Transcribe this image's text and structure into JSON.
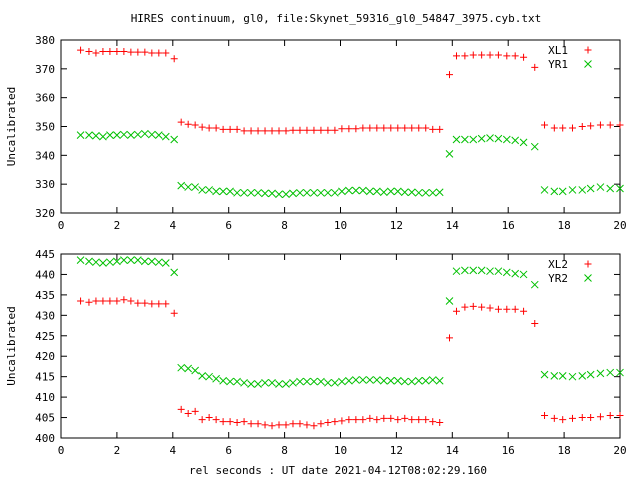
{
  "title": "HIRES continuum, gl0, file:Skynet_59316_gl0_54847_3975.cyb.txt",
  "xlabel": "rel seconds : UT date 2021-04-12T08:02:29.160",
  "colors": {
    "red": "#ff0000",
    "green": "#00c000",
    "axis": "#000000"
  },
  "chart_data": [
    {
      "type": "scatter",
      "ylabel": "Uncalibrated",
      "xlim": [
        0,
        20
      ],
      "ylim": [
        320,
        380
      ],
      "xticks": [
        0,
        2,
        4,
        6,
        8,
        10,
        12,
        14,
        16,
        18,
        20
      ],
      "yticks": [
        320,
        330,
        340,
        350,
        360,
        370,
        380
      ],
      "legend": "top-right",
      "series": [
        {
          "name": "XL1",
          "marker": "plus",
          "color": "#ff0000",
          "x": [
            0.7,
            1.0,
            1.25,
            1.5,
            1.75,
            2.0,
            2.25,
            2.5,
            2.75,
            3.0,
            3.25,
            3.5,
            3.75,
            4.05,
            4.3,
            4.55,
            4.8,
            5.05,
            5.3,
            5.55,
            5.8,
            6.05,
            6.3,
            6.55,
            6.8,
            7.05,
            7.3,
            7.55,
            7.8,
            8.05,
            8.3,
            8.55,
            8.8,
            9.05,
            9.3,
            9.55,
            9.8,
            10.05,
            10.3,
            10.55,
            10.8,
            11.05,
            11.3,
            11.55,
            11.8,
            12.05,
            12.3,
            12.55,
            12.8,
            13.05,
            13.3,
            13.55,
            13.9,
            14.15,
            14.45,
            14.75,
            15.05,
            15.35,
            15.65,
            15.95,
            16.25,
            16.55,
            16.95,
            17.3,
            17.65,
            17.95,
            18.3,
            18.65,
            18.95,
            19.3,
            19.65,
            20.0
          ],
          "y": [
            376.5,
            376,
            375.5,
            376,
            376,
            376,
            376,
            375.8,
            375.8,
            375.8,
            375.5,
            375.5,
            375.5,
            373.5,
            351.5,
            350.8,
            350.5,
            349.8,
            349.5,
            349.5,
            349.0,
            349.0,
            349.0,
            348.5,
            348.5,
            348.5,
            348.5,
            348.5,
            348.5,
            348.5,
            348.7,
            348.7,
            348.7,
            348.7,
            348.7,
            348.7,
            348.7,
            349.2,
            349.2,
            349.2,
            349.5,
            349.5,
            349.5,
            349.5,
            349.5,
            349.5,
            349.5,
            349.5,
            349.5,
            349.5,
            349.0,
            349.0,
            368.0,
            374.5,
            374.5,
            374.8,
            374.8,
            374.8,
            374.8,
            374.5,
            374.5,
            374.0,
            370.5,
            350.5,
            349.5,
            349.5,
            349.5,
            350.0,
            350.2,
            350.5,
            350.5,
            350.5
          ]
        },
        {
          "name": "YR1",
          "marker": "cross",
          "color": "#00c000",
          "x": [
            0.7,
            1.0,
            1.25,
            1.5,
            1.75,
            2.0,
            2.25,
            2.5,
            2.75,
            3.0,
            3.25,
            3.5,
            3.75,
            4.05,
            4.3,
            4.55,
            4.8,
            5.05,
            5.3,
            5.55,
            5.8,
            6.05,
            6.3,
            6.55,
            6.8,
            7.05,
            7.3,
            7.55,
            7.8,
            8.05,
            8.3,
            8.55,
            8.8,
            9.05,
            9.3,
            9.55,
            9.8,
            10.05,
            10.3,
            10.55,
            10.8,
            11.05,
            11.3,
            11.55,
            11.8,
            12.05,
            12.3,
            12.55,
            12.8,
            13.05,
            13.3,
            13.55,
            13.9,
            14.15,
            14.45,
            14.75,
            15.05,
            15.35,
            15.65,
            15.95,
            16.25,
            16.55,
            16.95,
            17.3,
            17.65,
            17.95,
            18.3,
            18.65,
            18.95,
            19.3,
            19.65,
            20.0
          ],
          "y": [
            347.0,
            347.0,
            346.8,
            346.5,
            347.0,
            347.0,
            347.2,
            347.0,
            347.2,
            347.5,
            347.2,
            347.0,
            346.5,
            345.5,
            329.5,
            329.0,
            329.0,
            328.0,
            328.0,
            327.5,
            327.5,
            327.5,
            327.0,
            327.0,
            327.0,
            327.0,
            326.8,
            326.8,
            326.5,
            326.5,
            326.8,
            327.0,
            327.0,
            327.0,
            327.0,
            327.0,
            327.0,
            327.5,
            327.8,
            327.8,
            327.8,
            327.5,
            327.5,
            327.2,
            327.5,
            327.5,
            327.2,
            327.2,
            327.0,
            327.0,
            327.0,
            327.2,
            340.5,
            345.5,
            345.5,
            345.5,
            345.8,
            346.0,
            345.8,
            345.5,
            345.2,
            344.5,
            343.0,
            328.0,
            327.5,
            327.5,
            328.0,
            328.0,
            328.5,
            329.0,
            328.5,
            328.5
          ]
        }
      ]
    },
    {
      "type": "scatter",
      "ylabel": "Uncalibrated",
      "xlim": [
        0,
        20
      ],
      "ylim": [
        400,
        445
      ],
      "xticks": [
        0,
        2,
        4,
        6,
        8,
        10,
        12,
        14,
        16,
        18,
        20
      ],
      "yticks": [
        400,
        405,
        410,
        415,
        420,
        425,
        430,
        435,
        440,
        445
      ],
      "legend": "top-right",
      "series": [
        {
          "name": "XL2",
          "marker": "plus",
          "color": "#ff0000",
          "x": [
            0.7,
            1.0,
            1.25,
            1.5,
            1.75,
            2.0,
            2.25,
            2.5,
            2.75,
            3.0,
            3.25,
            3.5,
            3.75,
            4.05,
            4.3,
            4.55,
            4.8,
            5.05,
            5.3,
            5.55,
            5.8,
            6.05,
            6.3,
            6.55,
            6.8,
            7.05,
            7.3,
            7.55,
            7.8,
            8.05,
            8.3,
            8.55,
            8.8,
            9.05,
            9.3,
            9.55,
            9.8,
            10.05,
            10.3,
            10.55,
            10.8,
            11.05,
            11.3,
            11.55,
            11.8,
            12.05,
            12.3,
            12.55,
            12.8,
            13.05,
            13.3,
            13.55,
            13.9,
            14.15,
            14.45,
            14.75,
            15.05,
            15.35,
            15.65,
            15.95,
            16.25,
            16.55,
            16.95,
            17.3,
            17.65,
            17.95,
            18.3,
            18.65,
            18.95,
            19.3,
            19.65,
            20.0
          ],
          "y": [
            433.5,
            433.2,
            433.5,
            433.5,
            433.5,
            433.5,
            433.8,
            433.5,
            433.0,
            433.0,
            432.8,
            432.8,
            432.8,
            430.5,
            407.0,
            406.0,
            406.5,
            404.5,
            405.0,
            404.5,
            404.0,
            404.0,
            403.8,
            404.0,
            403.5,
            403.5,
            403.2,
            403.0,
            403.2,
            403.2,
            403.5,
            403.5,
            403.2,
            403.0,
            403.5,
            403.8,
            404.0,
            404.2,
            404.5,
            404.5,
            404.5,
            404.8,
            404.5,
            404.8,
            404.8,
            404.5,
            404.8,
            404.5,
            404.5,
            404.5,
            404.0,
            403.8,
            424.5,
            431.0,
            432.0,
            432.2,
            432.0,
            431.8,
            431.5,
            431.5,
            431.5,
            431.0,
            428.0,
            405.5,
            404.8,
            404.5,
            404.8,
            405.0,
            405.0,
            405.2,
            405.5,
            405.5
          ]
        },
        {
          "name": "YR2",
          "marker": "cross",
          "color": "#00c000",
          "x": [
            0.7,
            1.0,
            1.25,
            1.5,
            1.75,
            2.0,
            2.25,
            2.5,
            2.75,
            3.0,
            3.25,
            3.5,
            3.75,
            4.05,
            4.3,
            4.55,
            4.8,
            5.05,
            5.3,
            5.55,
            5.8,
            6.05,
            6.3,
            6.55,
            6.8,
            7.05,
            7.3,
            7.55,
            7.8,
            8.05,
            8.3,
            8.55,
            8.8,
            9.05,
            9.3,
            9.55,
            9.8,
            10.05,
            10.3,
            10.55,
            10.8,
            11.05,
            11.3,
            11.55,
            11.8,
            12.05,
            12.3,
            12.55,
            12.8,
            13.05,
            13.3,
            13.55,
            13.9,
            14.15,
            14.45,
            14.75,
            15.05,
            15.35,
            15.65,
            15.95,
            16.25,
            16.55,
            16.95,
            17.3,
            17.65,
            17.95,
            18.3,
            18.65,
            18.95,
            19.3,
            19.65,
            20.0
          ],
          "y": [
            443.5,
            443.2,
            443.0,
            442.8,
            443.0,
            443.2,
            443.5,
            443.5,
            443.5,
            443.2,
            443.2,
            443.0,
            442.8,
            440.5,
            417.2,
            417.0,
            416.5,
            415.2,
            415.0,
            414.5,
            414.0,
            413.8,
            413.8,
            413.5,
            413.2,
            413.2,
            413.5,
            413.5,
            413.2,
            413.2,
            413.5,
            413.8,
            413.8,
            413.8,
            413.8,
            413.5,
            413.5,
            413.8,
            414.0,
            414.2,
            414.2,
            414.2,
            414.2,
            414.0,
            414.0,
            414.0,
            413.8,
            413.8,
            414.0,
            414.0,
            414.2,
            414.0,
            433.5,
            440.8,
            441.0,
            441.0,
            441.0,
            440.8,
            440.8,
            440.5,
            440.2,
            440.0,
            437.5,
            415.5,
            415.2,
            415.2,
            415.0,
            415.2,
            415.5,
            415.8,
            416.0,
            416.0
          ]
        }
      ]
    }
  ]
}
